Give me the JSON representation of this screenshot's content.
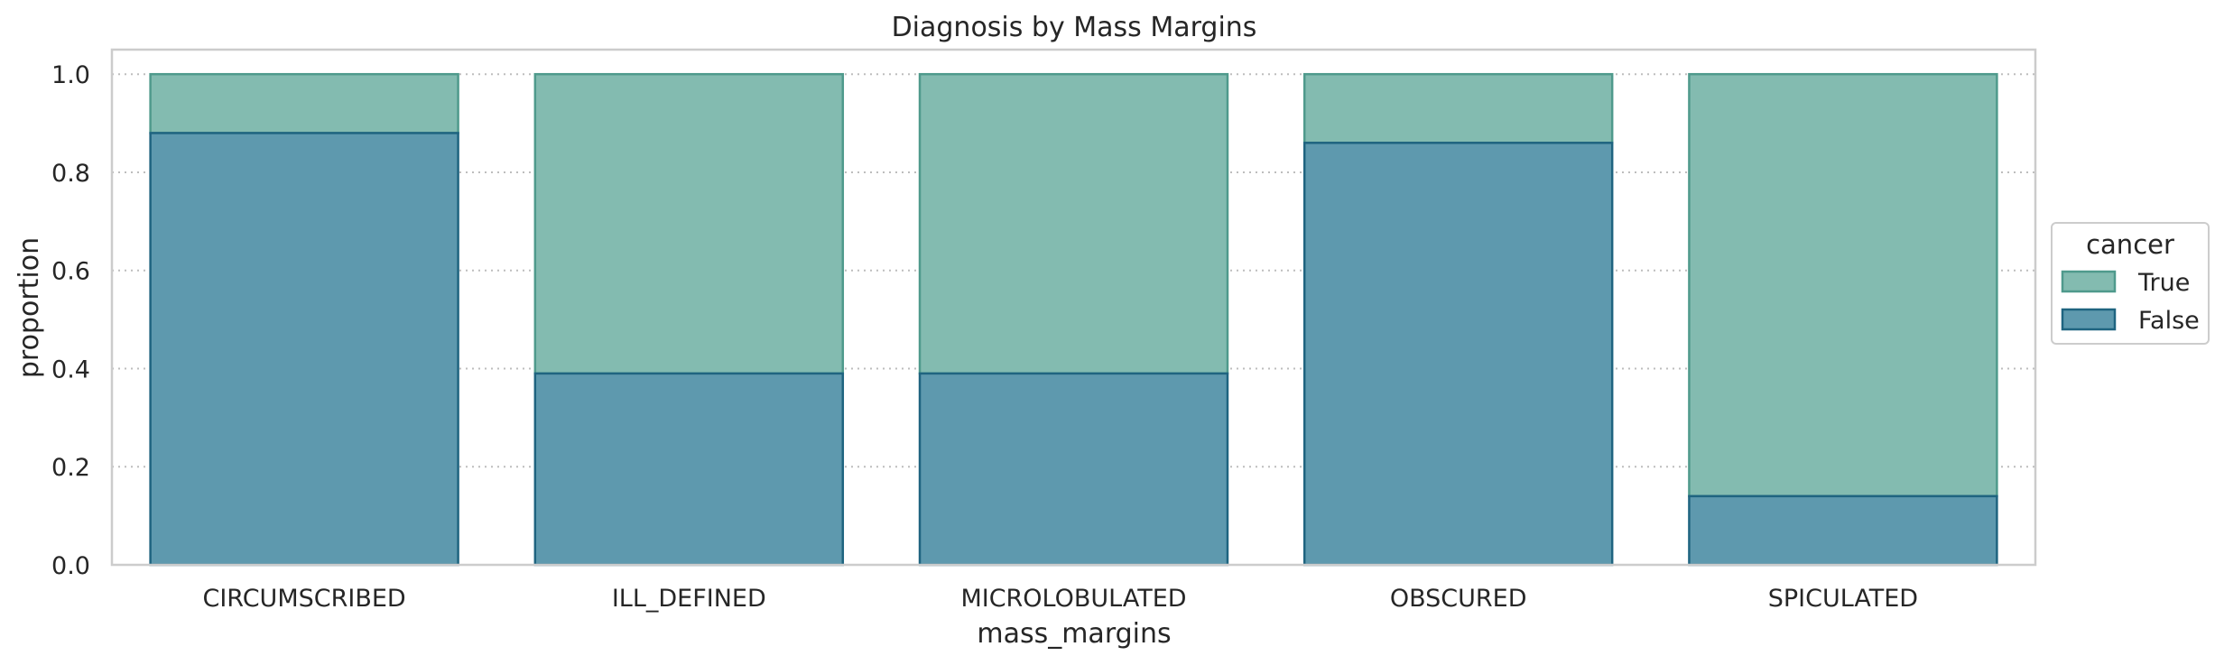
{
  "chart_data": {
    "type": "bar",
    "stacked": true,
    "title": "Diagnosis by Mass Margins",
    "xlabel": "mass_margins",
    "ylabel": "proportion",
    "categories": [
      "CIRCUMSCRIBED",
      "ILL_DEFINED",
      "MICROLOBULATED",
      "OBSCURED",
      "SPICULATED"
    ],
    "series": [
      {
        "name": "False",
        "values": [
          0.88,
          0.39,
          0.39,
          0.86,
          0.14
        ],
        "color": "#5e99ae",
        "edge_color": "#1f6480"
      },
      {
        "name": "True",
        "values": [
          0.12,
          0.61,
          0.61,
          0.14,
          0.86
        ],
        "color": "#83bbb0",
        "edge_color": "#4f9a8c"
      }
    ],
    "ylim": [
      0,
      1.05
    ],
    "yticks": [
      "0.0",
      "0.2",
      "0.4",
      "0.6",
      "0.8",
      "1.0"
    ],
    "grid": "y-dotted",
    "legend": {
      "title": "cancer",
      "placement": "outside-right",
      "entries": [
        "True",
        "False"
      ]
    }
  }
}
